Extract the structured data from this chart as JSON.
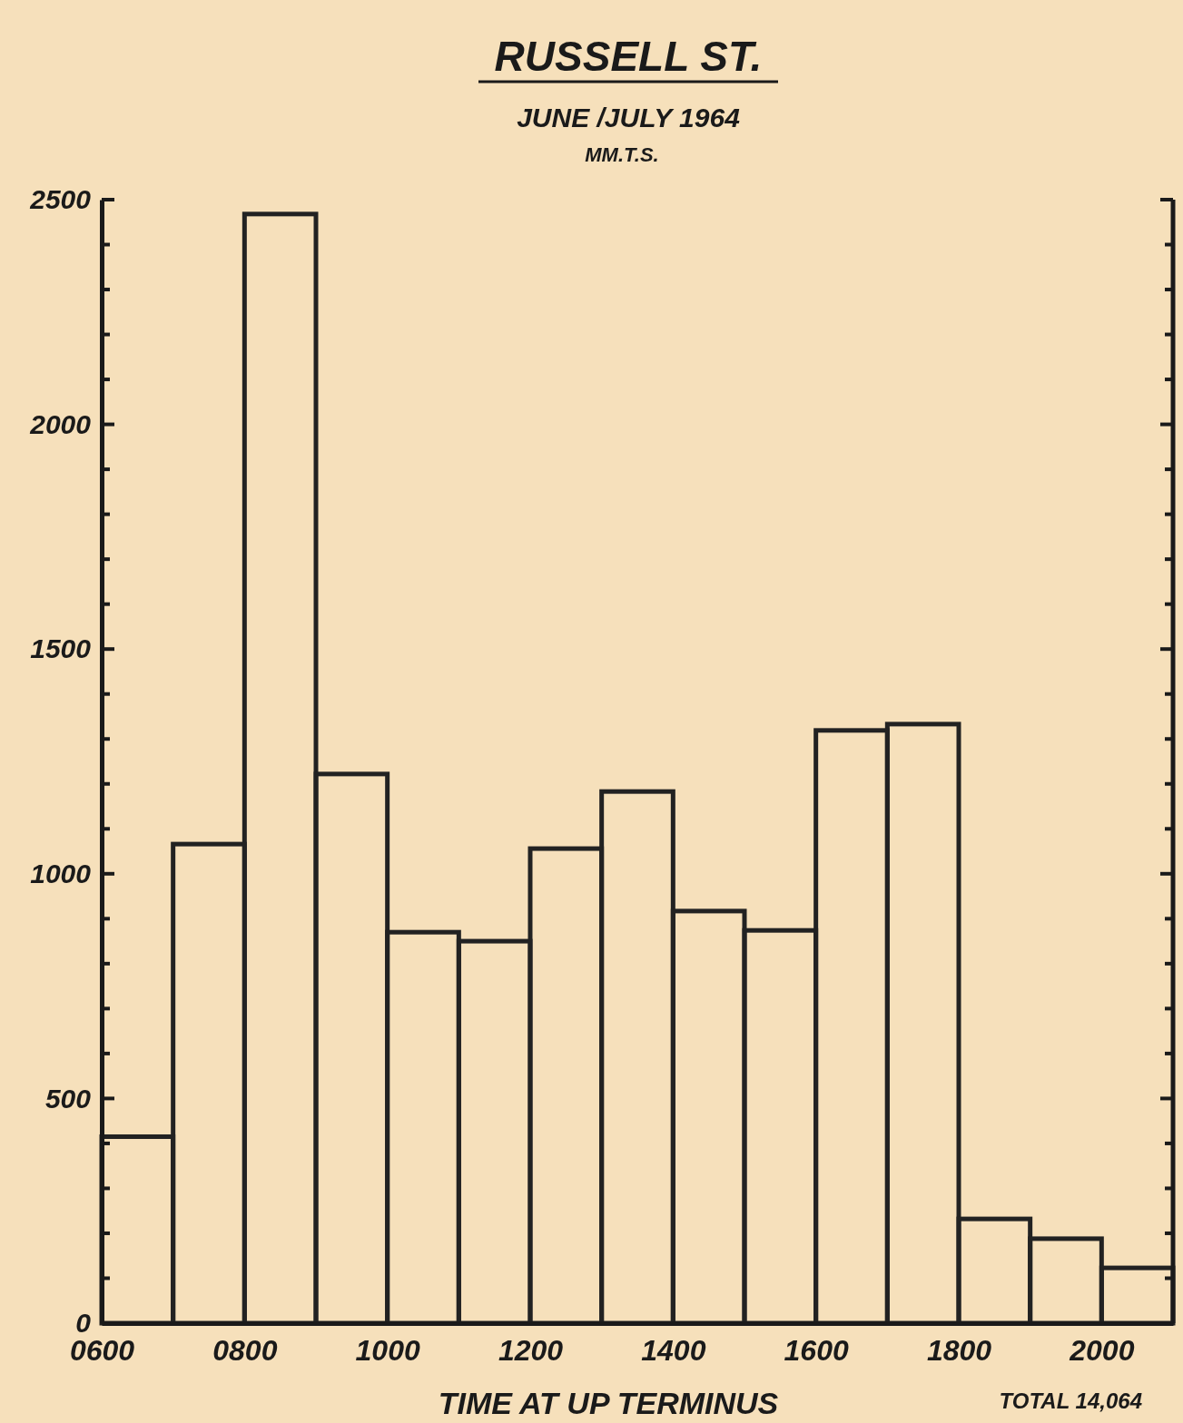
{
  "chart_data": {
    "type": "histogram",
    "title": "RUSSELL ST.",
    "subtitle": "JUNE /JULY 1964",
    "xlabel": "TIME AT UP TERMINUS",
    "annotations": [
      "MM.T.S.",
      "TOTAL 14,064"
    ],
    "bins": [
      600,
      700,
      800,
      900,
      1000,
      1100,
      1200,
      1300,
      1400,
      1500,
      1600,
      1700,
      1800,
      1900,
      2000,
      2100
    ],
    "values": [
      415,
      1066,
      2468,
      1222,
      870,
      850,
      1056,
      1183,
      917,
      874,
      1319,
      1333,
      232,
      188,
      123
    ],
    "color": "#222222",
    "xlim": [
      600,
      2100
    ],
    "xticks": [
      {
        "value": 600,
        "label": "0600"
      },
      {
        "value": 800,
        "label": "0800"
      },
      1000,
      1200,
      1400,
      1600,
      1800,
      2000
    ],
    "ylim": [
      0,
      2500
    ],
    "yticks": [
      0,
      {
        "value": 100,
        "label": null
      },
      {
        "value": 200,
        "label": null
      },
      {
        "value": 300,
        "label": null
      },
      {
        "value": 400,
        "label": null
      },
      500,
      {
        "value": 600,
        "label": null
      },
      {
        "value": 700,
        "label": null
      },
      {
        "value": 800,
        "label": null
      },
      {
        "value": 900,
        "label": null
      },
      1000,
      {
        "value": 1100,
        "label": null
      },
      {
        "value": 1200,
        "label": null
      },
      {
        "value": 1300,
        "label": null
      },
      {
        "value": 1400,
        "label": null
      },
      1500,
      {
        "value": 1600,
        "label": null
      },
      {
        "value": 1700,
        "label": null
      },
      {
        "value": 1800,
        "label": null
      },
      {
        "value": 1900,
        "label": null
      },
      2000,
      {
        "value": 2100,
        "label": null
      },
      {
        "value": 2200,
        "label": null
      },
      {
        "value": 2300,
        "label": null
      },
      {
        "value": 2400,
        "label": null
      },
      2500
    ],
    "grid": false
  }
}
